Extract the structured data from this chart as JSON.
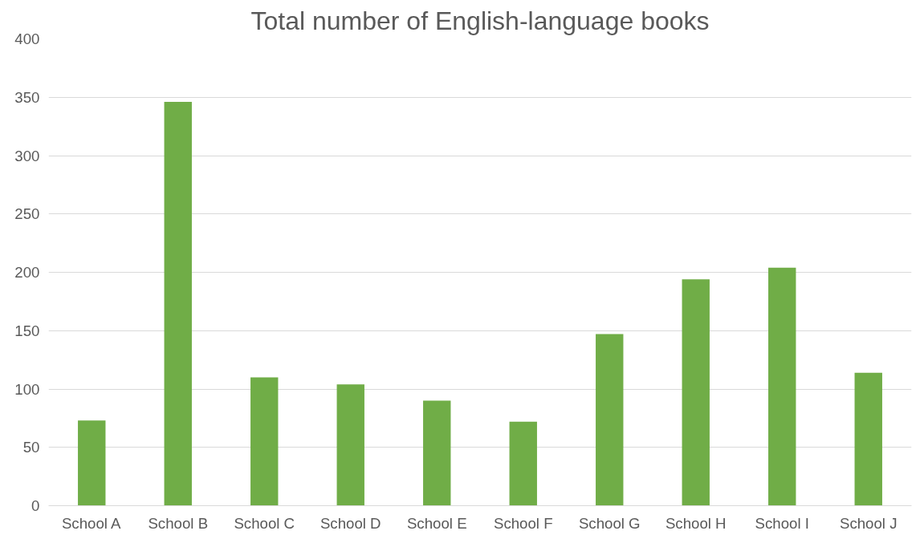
{
  "chart_data": {
    "type": "bar",
    "title": "Total number of English-language books",
    "categories": [
      "School A",
      "School B",
      "School C",
      "School D",
      "School E",
      "School F",
      "School G",
      "School H",
      "School I",
      "School J"
    ],
    "values": [
      73,
      346,
      110,
      104,
      90,
      72,
      147,
      194,
      204,
      114
    ],
    "color": "#70ad47",
    "ylim": [
      0,
      400
    ],
    "yticks": [
      0,
      50,
      100,
      150,
      200,
      250,
      300,
      350,
      400
    ],
    "grid": "y"
  }
}
